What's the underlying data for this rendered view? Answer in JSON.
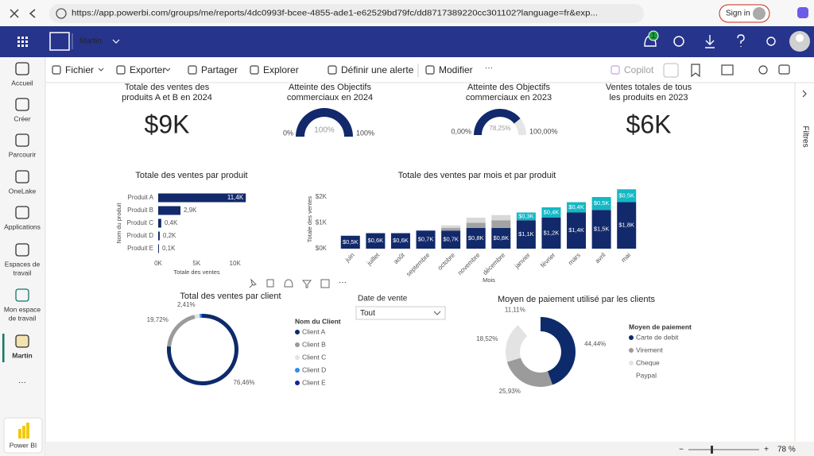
{
  "browser": {
    "url": "https://app.powerbi.com/groups/me/reports/4dc0993f-bcee-4855-ade1-e62529bd79fc/dd8717389220cc301102?language=fr&exp...",
    "sign_in": "Sign in"
  },
  "header": {
    "workspace": "Martin",
    "notifications": "1"
  },
  "nav": [
    "Accueil",
    "Créer",
    "Parcourir",
    "OneLake",
    "Applications",
    [
      "Espaces de",
      "travail"
    ],
    [
      "Mon espace",
      "de travail"
    ],
    "Martin"
  ],
  "app_tile": "Power BI",
  "toolbar": [
    "Fichier",
    "Exporter",
    "Partager",
    "Explorer",
    "Définir une alerte",
    "Modifier",
    "Copilot"
  ],
  "filters": "Filtres",
  "zoom": "78 %",
  "cards": [
    {
      "title": [
        "Totale des ventes des",
        "produits A et B en 2024"
      ],
      "value": "$9K"
    },
    {
      "title": [
        "Ventes totales de tous",
        "les produits en 2023"
      ],
      "value": "$6K"
    }
  ],
  "slicer": {
    "title": "Date de vente",
    "value": "Tout"
  },
  "chart_data": [
    {
      "type": "gauge",
      "title": [
        "Atteinte des Objectifs",
        "commerciaux en 2024"
      ],
      "value": 100,
      "value_label": "100%",
      "min": {
        "value": 0,
        "label": "0%"
      },
      "max": {
        "value": 100,
        "label": "100%"
      },
      "color": "#12296b",
      "track": "#e6e6e6"
    },
    {
      "type": "gauge",
      "title": [
        "Atteinte des Objectifs",
        "commerciaux en 2023"
      ],
      "value": 78.25,
      "value_label": "78,25%",
      "min": {
        "value": 0,
        "label": "0,00%"
      },
      "max": {
        "value": 100,
        "label": "100,00%"
      },
      "color": "#12296b",
      "track": "#e6e6e6"
    },
    {
      "type": "hbar",
      "title": "Totale des ventes par produit",
      "x_label": "Totale des ventes",
      "y_label": "Nom du produit",
      "categories": [
        "Produit A",
        "Produit B",
        "Produit C",
        "Produit D",
        "Produit E"
      ],
      "values": [
        11400,
        2900,
        400,
        200,
        100
      ],
      "value_labels": [
        "11,4K",
        "2,9K",
        "0,4K",
        "0,2K",
        "0,1K"
      ],
      "color": "#12296b",
      "xlim": [
        0,
        12000
      ],
      "xticks": [
        {
          "value": 0,
          "label": "0K"
        },
        {
          "value": 5000,
          "label": "5K"
        },
        {
          "value": 10000,
          "label": "10K"
        }
      ]
    },
    {
      "type": "stacked_bar",
      "title": "Totale des ventes par mois et par produit",
      "x_label": "Mois",
      "y_label": "Totale des ventes",
      "categories": [
        "juin",
        "juillet",
        "août",
        "septembre",
        "octobre",
        "novembre",
        "décembre",
        "janvier",
        "février",
        "mars",
        "avril",
        "mai"
      ],
      "ylim": [
        0,
        2400
      ],
      "yticks": [
        {
          "value": 0,
          "label": "$0K"
        },
        {
          "value": 1000,
          "label": "$1K"
        },
        {
          "value": 2000,
          "label": "$2K"
        }
      ],
      "series": [
        {
          "color": "#12296b",
          "values": [
            500,
            600,
            600,
            700,
            700,
            800,
            800,
            1100,
            1200,
            1400,
            1500,
            1800
          ],
          "value_labels": [
            "$0,5K",
            "$0,6K",
            "$0,6K",
            "$0,7K",
            "$0,7K",
            "$0,8K",
            "$0,8K",
            "$1,1K",
            "$1,2K",
            "$1,4K",
            "$1,5K",
            "$1,8K"
          ]
        },
        {
          "color": "#a3a3a3",
          "values": [
            null,
            null,
            null,
            null,
            100,
            200,
            300,
            null,
            null,
            null,
            null,
            null
          ]
        },
        {
          "color": "#d8d8d8",
          "values": [
            null,
            null,
            null,
            null,
            100,
            200,
            200,
            null,
            null,
            null,
            null,
            null
          ]
        },
        {
          "color": "#14b8c4",
          "values": [
            null,
            null,
            null,
            null,
            null,
            null,
            null,
            300,
            400,
            400,
            500,
            500
          ],
          "value_labels": [
            null,
            null,
            null,
            null,
            null,
            null,
            null,
            "$0,3K",
            "$0,4K",
            "$0,4K",
            "$0,5K",
            "$0,5K"
          ]
        }
      ]
    },
    {
      "type": "donut",
      "title": "Total des ventes par client",
      "legend_title": "Nom du Client",
      "categories": [
        "Client A",
        "Client B",
        "Client C",
        "Client D",
        "Client E"
      ],
      "values": [
        76.46,
        19.72,
        2.41,
        0.9,
        0.51
      ],
      "value_labels": [
        "76,46%",
        "19,72%",
        "2,41%",
        null,
        null
      ],
      "colors": [
        "#0d2a6b",
        "#9b9b9b",
        "#e3e3e3",
        "#2b8de8",
        "#12239e"
      ]
    },
    {
      "type": "donut",
      "title": "Moyen de paiement utilisé par les clients",
      "legend_title": "Moyen de paiement",
      "categories": [
        "Carte de debit",
        "Virement",
        "Cheque",
        "Paypal"
      ],
      "values": [
        44.44,
        25.93,
        18.52,
        11.11
      ],
      "value_labels": [
        "44,44%",
        "25,93%",
        "18,52%",
        "11,11%"
      ],
      "colors": [
        "#0d2a6b",
        "#9b9b9b",
        "#e3e3e3",
        "#ffffff"
      ]
    }
  ]
}
